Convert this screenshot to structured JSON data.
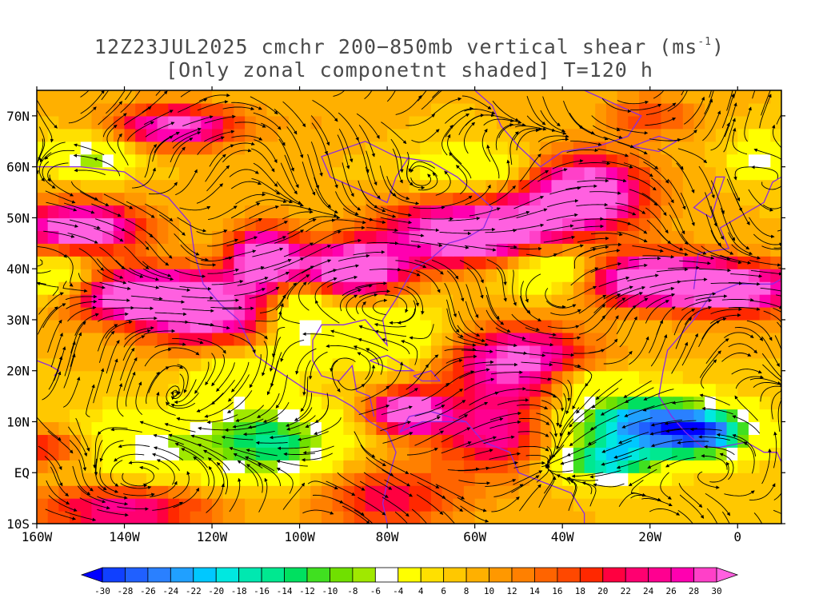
{
  "title": {
    "line1_prefix": "12Z23JUL2025 cmchr 200−850mb vertical shear (ms",
    "line1_sup": "-1",
    "line1_suffix": ")",
    "line2": "[Only zonal componetnt shaded] T=120 h"
  },
  "map": {
    "lon_range": [
      -160,
      10
    ],
    "lat_range": [
      -10,
      75
    ],
    "lon_ticks": [
      "160W",
      "140W",
      "120W",
      "100W",
      "80W",
      "60W",
      "40W",
      "20W",
      "0"
    ],
    "lat_ticks": [
      "10S",
      "EQ",
      "10N",
      "20N",
      "30N",
      "40N",
      "50N",
      "60N",
      "70N"
    ],
    "field": "zonal component of 200-850mb vertical shear",
    "units": "ms-1",
    "overlay": "shear streamlines",
    "coastline_color": "#8a2be2"
  },
  "colorbar": {
    "levels": [
      "-30",
      "-28",
      "-26",
      "-24",
      "-22",
      "-20",
      "-18",
      "-16",
      "-14",
      "-12",
      "-10",
      "-8",
      "-6",
      "-4",
      "4",
      "6",
      "8",
      "10",
      "12",
      "14",
      "16",
      "18",
      "20",
      "22",
      "24",
      "26",
      "28",
      "30"
    ],
    "colors": [
      "#0000ff",
      "#1040ff",
      "#2060ff",
      "#2a80ff",
      "#20a0ff",
      "#00c8ff",
      "#00e8e0",
      "#00e8b0",
      "#00e890",
      "#00e060",
      "#40e020",
      "#70e000",
      "#a0e800",
      "#ffffff",
      "#ffff00",
      "#ffe000",
      "#ffc800",
      "#ffb000",
      "#ff9800",
      "#ff8000",
      "#ff6400",
      "#ff4800",
      "#ff2800",
      "#ff0040",
      "#ff0070",
      "#ff0090",
      "#ff00b0",
      "#ff40c8",
      "#ff60e0"
    ]
  }
}
